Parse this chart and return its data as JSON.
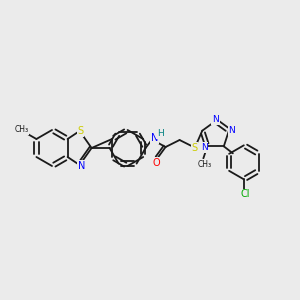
{
  "background_color": "#ebebeb",
  "bond_color": "#1a1a1a",
  "atom_colors": {
    "S": "#cccc00",
    "N": "#0000ff",
    "O": "#ff0000",
    "Cl": "#00aa00",
    "H": "#008080",
    "C": "#1a1a1a",
    "CH3": "#1a1a1a"
  },
  "figsize": [
    3.0,
    3.0
  ],
  "dpi": 100
}
